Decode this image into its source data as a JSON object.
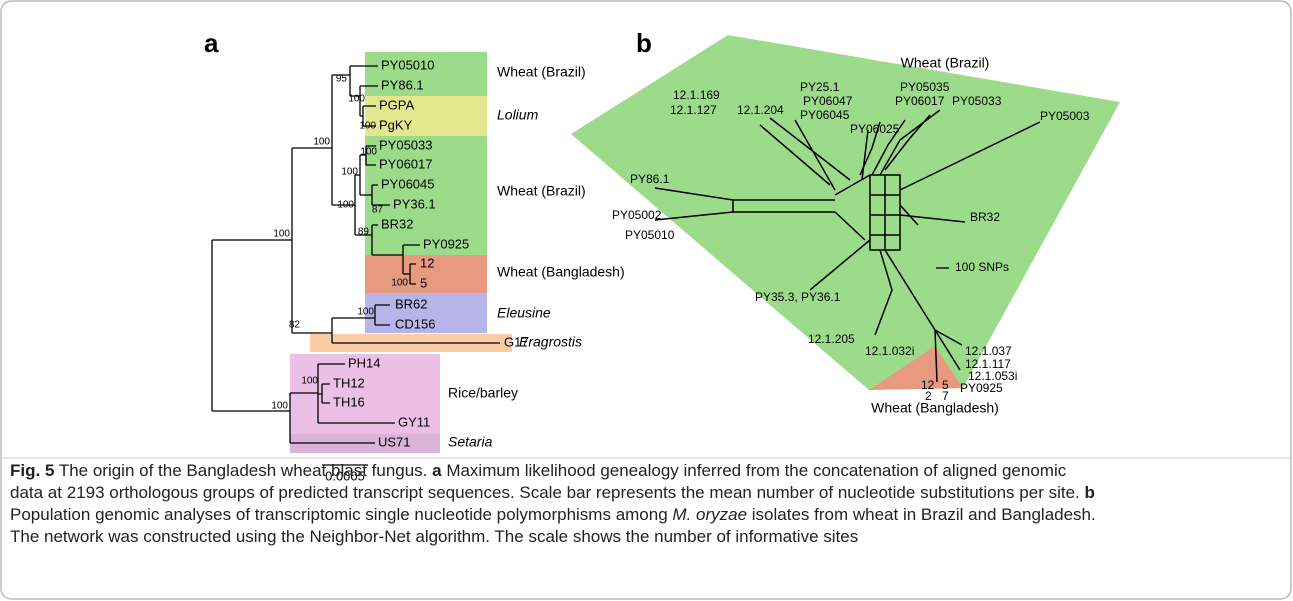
{
  "panel_a": {
    "label": "a",
    "leaves": [
      "PY05010",
      "PY86.1",
      "PGPA",
      "PgKY",
      "PY05033",
      "PY06017",
      "PY06045",
      "PY36.1",
      "BR32",
      "PY0925",
      "12",
      "5",
      "BR62",
      "CD156",
      "G17",
      "PH14",
      "TH12",
      "TH16",
      "GY11",
      "US71"
    ],
    "bootstraps": [
      "100",
      "100",
      "82",
      "95",
      "100",
      "100",
      "100",
      "100",
      "100",
      "87",
      "89",
      "100",
      "100",
      "100",
      "100"
    ],
    "groups": [
      "Wheat (Brazil)",
      "Lolium",
      "Wheat (Brazil)",
      "Wheat (Bangladesh)",
      "Eleusine",
      "Eragrostis",
      "Rice/barley",
      "Setaria"
    ],
    "scale_bar": "0.0005"
  },
  "panel_b": {
    "label": "b",
    "groups": [
      "Wheat (Brazil)",
      "Wheat (Bangladesh)"
    ],
    "taxa": [
      "12.1.169",
      "12.1.127",
      "12.1.204",
      "PY25.1",
      "PY05035",
      "PY06047",
      "PY06017",
      "PY05033",
      "PY06045",
      "PY06025",
      "PY05003",
      "PY86.1",
      "PY05002",
      "PY05010",
      "BR32",
      "PY35.3, PY36.1",
      "12.1.205",
      "12.1.032i",
      "12",
      "5",
      "2",
      "7",
      "12.1.037",
      "12.1.117",
      "12.1.053i",
      "PY0925"
    ],
    "scale": "100 SNPs"
  },
  "caption": {
    "runs": [
      "Fig. 5",
      " The origin of the Bangladesh wheat blast fungus. ",
      "a",
      " Maximum likelihood genealogy inferred from the concatenation of aligned genomic",
      "data at 2193 orthologous groups of predicted transcript sequences. Scale bar represents the mean number of nucleotide substitutions per site. ",
      "b",
      "Population genomic analyses of transcriptomic single nucleotide polymorphisms among ",
      "M. oryzae",
      " isolates from wheat in Brazil and Bangladesh.",
      "The network was constructed using the Neighbor-Net algorithm. The scale shows the number of informative sites"
    ]
  }
}
